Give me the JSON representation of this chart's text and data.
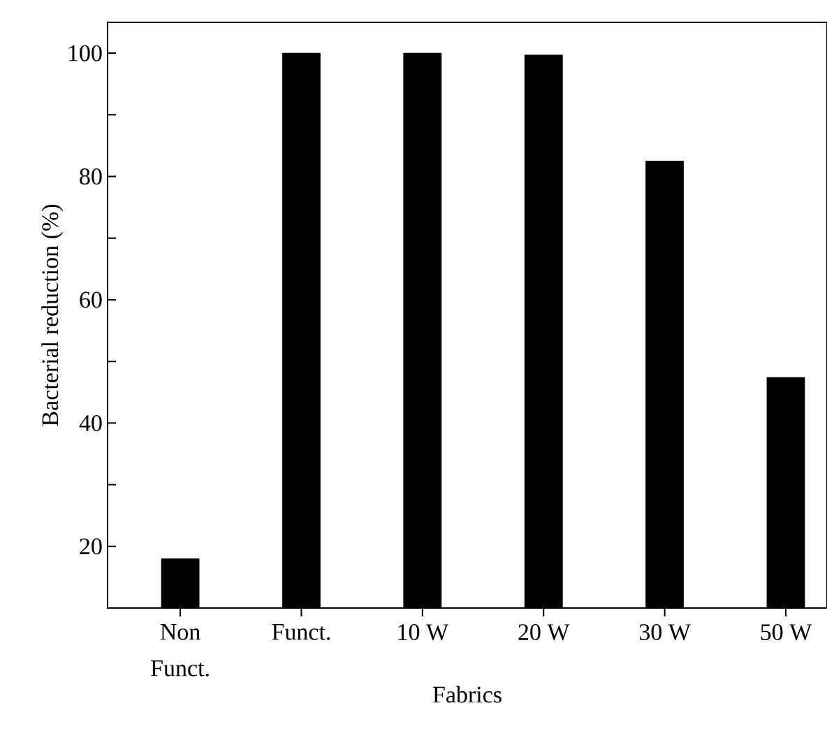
{
  "chart_data": {
    "type": "bar",
    "xlabel": "Fabrics",
    "ylabel": "Bacterial reduction (%)",
    "categories": [
      "Non\nFunct.",
      "Funct.",
      "10 W",
      "20 W",
      "30 W",
      "50 W"
    ],
    "values": [
      18,
      100,
      100,
      99.7,
      82.5,
      47.4
    ],
    "color": "#000000",
    "ylim": [
      10,
      105
    ],
    "yticks": [
      20,
      {
        "value": 30,
        "label": null
      },
      40,
      {
        "value": 50,
        "label": null
      },
      60,
      {
        "value": 70,
        "label": null
      },
      80,
      {
        "value": 90,
        "label": null
      },
      100
    ],
    "grid": false
  }
}
